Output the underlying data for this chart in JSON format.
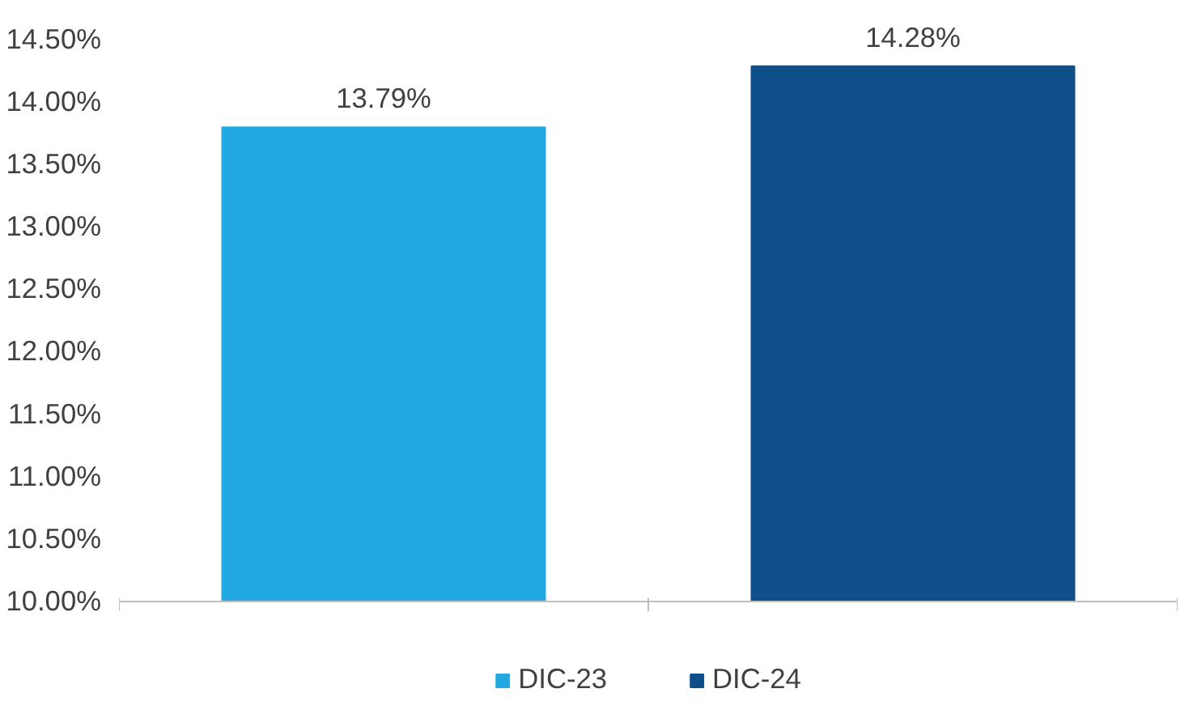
{
  "chart_data": {
    "type": "bar",
    "categories": [
      null
    ],
    "series": [
      {
        "name": "DIC-23",
        "color": "#23a9e1",
        "values": [
          13.79
        ],
        "value_labels": [
          "13.79%"
        ]
      },
      {
        "name": "DIC-24",
        "color": "#0e4f8a",
        "values": [
          14.28
        ],
        "value_labels": [
          "14.28%"
        ]
      }
    ],
    "ylim": [
      10,
      14.5
    ],
    "yticks": [
      {
        "value": 10,
        "label": "10.00%"
      },
      {
        "value": 10.5,
        "label": "10.50%"
      },
      {
        "value": 11,
        "label": "11.00%"
      },
      {
        "value": 11.5,
        "label": "11.50%"
      },
      {
        "value": 12,
        "label": "12.00%"
      },
      {
        "value": 12.5,
        "label": "12.50%"
      },
      {
        "value": 13,
        "label": "13.00%"
      },
      {
        "value": 13.5,
        "label": "13.50%"
      },
      {
        "value": 14,
        "label": "14.00%"
      },
      {
        "value": 14.5,
        "label": "14.50%"
      }
    ],
    "grid": false,
    "legend": "bottom",
    "tick_labels": "y"
  }
}
